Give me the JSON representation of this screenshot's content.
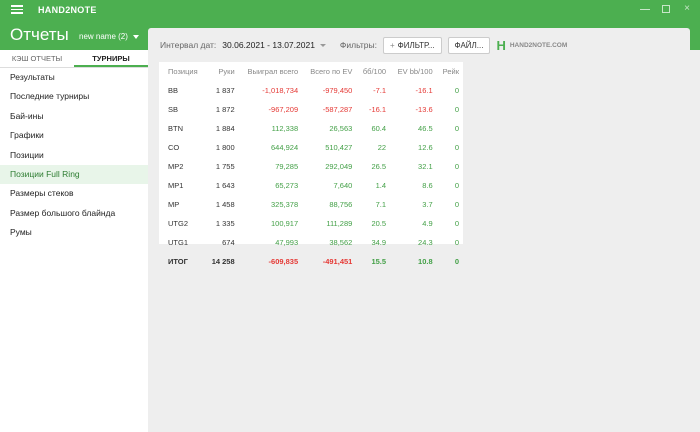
{
  "app": {
    "title": "HAND2NOTE"
  },
  "window_controls": {
    "minimize": "–",
    "maximize": "□",
    "close": "×"
  },
  "header": {
    "title": "Отчеты",
    "profile": "new name (2)"
  },
  "tabs": [
    {
      "label": "КЭШ ОТЧЕТЫ",
      "active": false
    },
    {
      "label": "ТУРНИРЫ",
      "active": true
    }
  ],
  "sidebar": {
    "items": [
      {
        "label": "Результаты"
      },
      {
        "label": "Последние турниры"
      },
      {
        "label": "Бай-ины"
      },
      {
        "label": "Графики"
      },
      {
        "label": "Позиции"
      },
      {
        "label": "Позиции Full Ring",
        "active": true
      },
      {
        "label": "Размеры стеков"
      },
      {
        "label": "Размер большого блайнда"
      },
      {
        "label": "Румы"
      }
    ]
  },
  "toolbar": {
    "interval_label": "Интервал дат:",
    "date_range": "30.06.2021 - 13.07.2021",
    "filters_label": "Фильтры:",
    "filter_button": "ФИЛЬТР...",
    "file_button": "ФАЙЛ...",
    "logo_text": "HAND2NOTE.COM"
  },
  "table": {
    "columns": [
      "Позиция",
      "Руки",
      "Выиграл всего",
      "Всего по EV",
      "бб/100",
      "EV bb/100",
      "Рейк"
    ],
    "rows": [
      [
        "BB",
        "1 837",
        "-1,018,734",
        "-979,450",
        "-7.1",
        "-16.1",
        "0"
      ],
      [
        "SB",
        "1 872",
        "-967,209",
        "-587,287",
        "-16.1",
        "-13.6",
        "0"
      ],
      [
        "BTN",
        "1 884",
        "112,338",
        "26,563",
        "60.4",
        "46.5",
        "0"
      ],
      [
        "CO",
        "1 800",
        "644,924",
        "510,427",
        "22",
        "12.6",
        "0"
      ],
      [
        "MP2",
        "1 755",
        "79,285",
        "292,049",
        "26.5",
        "32.1",
        "0"
      ],
      [
        "MP1",
        "1 643",
        "65,273",
        "7,640",
        "1.4",
        "8.6",
        "0"
      ],
      [
        "MP",
        "1 458",
        "325,378",
        "88,756",
        "7.1",
        "3.7",
        "0"
      ],
      [
        "UTG2",
        "1 335",
        "100,917",
        "111,289",
        "20.5",
        "4.9",
        "0"
      ],
      [
        "UTG1",
        "674",
        "47,993",
        "38,562",
        "34.9",
        "24.3",
        "0"
      ]
    ],
    "total": [
      "ИТОГ",
      "14 258",
      "-609,835",
      "-491,451",
      "15.5",
      "10.8",
      "0"
    ]
  },
  "colors": {
    "accent": "#4caf50",
    "positive": "#43a047",
    "negative": "#e53935"
  }
}
